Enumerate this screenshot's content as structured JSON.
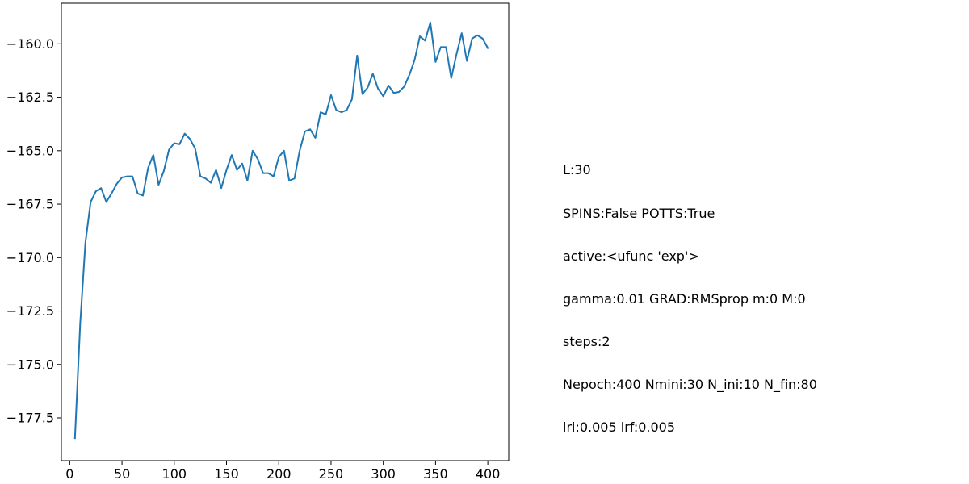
{
  "chart_data": {
    "type": "line",
    "title": "",
    "xlabel": "",
    "ylabel": "",
    "xlim": [
      -8,
      420
    ],
    "ylim": [
      -179.5,
      -158.1
    ],
    "grid": false,
    "x_ticks": [
      0,
      50,
      100,
      150,
      200,
      250,
      300,
      350,
      400
    ],
    "y_ticks": [
      -177.5,
      -175.0,
      -172.5,
      -170.0,
      -167.5,
      -165.0,
      -162.5,
      -160.0
    ],
    "x_tick_labels": [
      "0",
      "50",
      "100",
      "150",
      "200",
      "250",
      "300",
      "350",
      "400"
    ],
    "y_tick_labels": [
      "−177.5",
      "−175.0",
      "−172.5",
      "−170.0",
      "−167.5",
      "−165.0",
      "−162.5",
      "−160.0"
    ],
    "series": [
      {
        "color": "#1f77b4",
        "x": [
          5,
          10,
          15,
          20,
          25,
          30,
          35,
          40,
          45,
          50,
          55,
          60,
          65,
          70,
          75,
          80,
          85,
          90,
          95,
          100,
          105,
          110,
          115,
          120,
          125,
          130,
          135,
          140,
          145,
          150,
          155,
          160,
          165,
          170,
          175,
          180,
          185,
          190,
          195,
          200,
          205,
          210,
          215,
          220,
          225,
          230,
          235,
          240,
          245,
          250,
          255,
          260,
          265,
          270,
          275,
          280,
          285,
          290,
          295,
          300,
          305,
          310,
          315,
          320,
          325,
          330,
          335,
          340,
          345,
          350,
          355,
          360,
          365,
          370,
          375,
          380,
          385,
          390,
          395,
          400
        ],
        "y": [
          -178.45,
          -173.1,
          -169.3,
          -167.4,
          -166.9,
          -166.75,
          -167.4,
          -167.0,
          -166.55,
          -166.25,
          -166.2,
          -166.2,
          -167.0,
          -167.1,
          -165.8,
          -165.2,
          -166.6,
          -165.95,
          -164.95,
          -164.65,
          -164.7,
          -164.2,
          -164.45,
          -164.9,
          -166.2,
          -166.3,
          -166.5,
          -165.9,
          -166.75,
          -165.9,
          -165.2,
          -165.9,
          -165.6,
          -166.4,
          -165.0,
          -165.4,
          -166.05,
          -166.05,
          -166.2,
          -165.3,
          -165.0,
          -166.4,
          -166.3,
          -165.0,
          -164.1,
          -164.0,
          -164.4,
          -163.2,
          -163.3,
          -162.4,
          -163.1,
          -163.2,
          -163.1,
          -162.6,
          -160.55,
          -162.35,
          -162.05,
          -161.4,
          -162.1,
          -162.45,
          -161.95,
          -162.3,
          -162.25,
          -162.0,
          -161.45,
          -160.75,
          -159.65,
          -159.85,
          -159.0,
          -160.85,
          -160.15,
          -160.15,
          -161.6,
          -160.5,
          -159.5,
          -160.8,
          -159.75,
          -159.6,
          -159.75,
          -160.2
        ]
      }
    ]
  },
  "info_text": [
    "L:30",
    "SPINS:False POTTS:True",
    "active:<ufunc 'exp'>",
    "gamma:0.01 GRAD:RMSprop m:0 M:0",
    "steps:2",
    "Nepoch:400 Nmini:30 N_ini:10 N_fin:80",
    "lri:0.005 lrf:0.005"
  ]
}
